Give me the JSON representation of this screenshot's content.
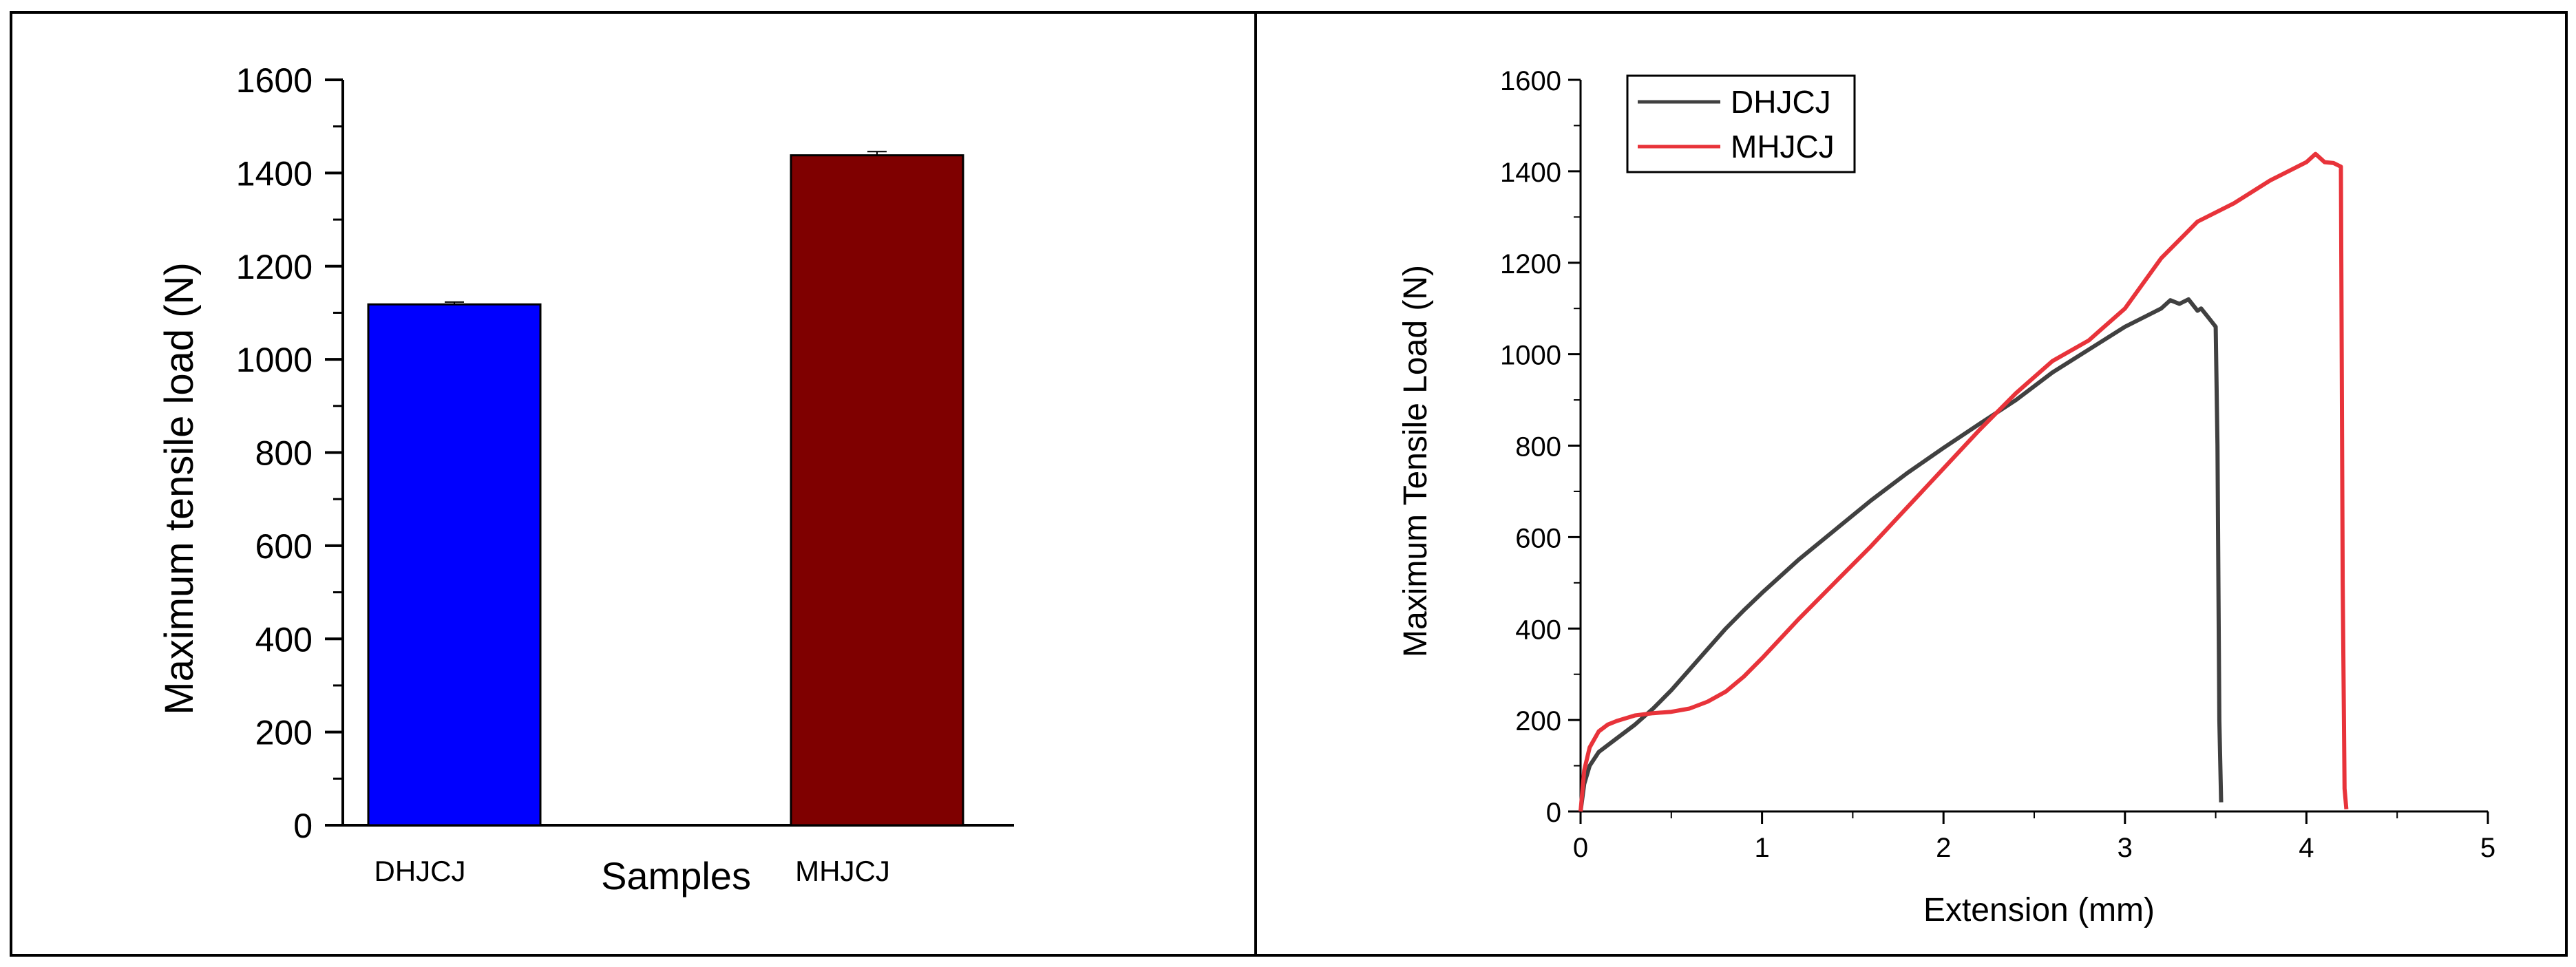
{
  "chart_data": [
    {
      "type": "bar",
      "categories": [
        "DHJCJ",
        "MHJCJ"
      ],
      "values": [
        1118,
        1438
      ],
      "errors": [
        5,
        8
      ],
      "colors": [
        "#0000ff",
        "#7f0000"
      ],
      "xlabel": "Samples",
      "ylabel": "Maximum tensile load (N)",
      "ylim": [
        0,
        1600
      ],
      "yticks": [
        0,
        200,
        400,
        600,
        800,
        1000,
        1200,
        1400,
        1600
      ],
      "grid": false
    },
    {
      "type": "line",
      "xlabel": "Extension (mm)",
      "ylabel": "Maximum Tensile Load (N)",
      "xlim": [
        0,
        5
      ],
      "ylim": [
        0,
        1600
      ],
      "xticks": [
        0,
        1,
        2,
        3,
        4,
        5
      ],
      "yticks": [
        0,
        200,
        400,
        600,
        800,
        1000,
        1200,
        1400,
        1600
      ],
      "legend_position": "top-left",
      "grid": false,
      "series": [
        {
          "name": "DHJCJ",
          "color": "#404040",
          "x": [
            0,
            0.02,
            0.05,
            0.1,
            0.2,
            0.3,
            0.4,
            0.5,
            0.6,
            0.7,
            0.8,
            0.9,
            1.0,
            1.2,
            1.4,
            1.6,
            1.8,
            2.0,
            2.2,
            2.4,
            2.6,
            2.8,
            3.0,
            3.1,
            3.2,
            3.25,
            3.3,
            3.35,
            3.4,
            3.42,
            3.46,
            3.5,
            3.51,
            3.52,
            3.53
          ],
          "y": [
            0,
            60,
            100,
            130,
            160,
            190,
            225,
            265,
            310,
            355,
            400,
            440,
            478,
            550,
            615,
            680,
            740,
            795,
            848,
            900,
            960,
            1010,
            1060,
            1080,
            1100,
            1118,
            1110,
            1120,
            1095,
            1100,
            1080,
            1060,
            800,
            200,
            20
          ]
        },
        {
          "name": "MHJCJ",
          "color": "#e8333a",
          "x": [
            0,
            0.02,
            0.05,
            0.1,
            0.15,
            0.2,
            0.3,
            0.4,
            0.5,
            0.6,
            0.7,
            0.8,
            0.9,
            1.0,
            1.2,
            1.4,
            1.6,
            1.8,
            2.0,
            2.2,
            2.4,
            2.6,
            2.8,
            3.0,
            3.2,
            3.4,
            3.6,
            3.8,
            4.0,
            4.05,
            4.1,
            4.15,
            4.19,
            4.2,
            4.21,
            4.22
          ],
          "y": [
            0,
            90,
            140,
            175,
            190,
            198,
            210,
            215,
            218,
            225,
            240,
            262,
            295,
            335,
            420,
            500,
            580,
            665,
            750,
            835,
            915,
            985,
            1030,
            1100,
            1210,
            1290,
            1330,
            1380,
            1420,
            1438,
            1420,
            1418,
            1410,
            500,
            50,
            5
          ]
        }
      ]
    }
  ]
}
